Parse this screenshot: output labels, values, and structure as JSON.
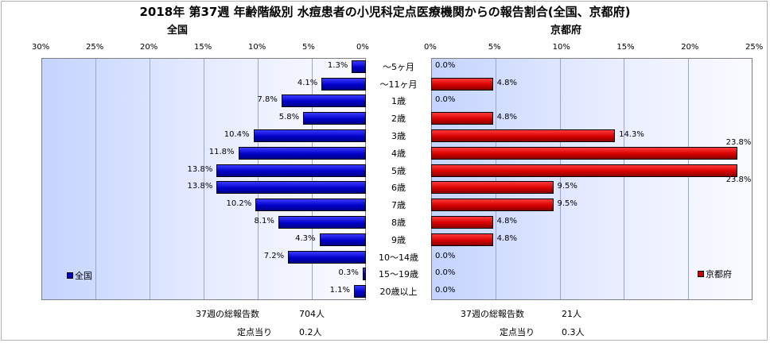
{
  "title": "2018年 第37週 年齢階級別 水痘患者の小児科定点医療機関からの報告割合(全国、京都府)",
  "colors": {
    "nation": "#0000cc",
    "kyoto": "#cc0000",
    "plot_bg_left": "#c4d4ff",
    "plot_bg_right": "#fafbff"
  },
  "chart_data": [
    {
      "type": "bar",
      "orientation": "horizontal",
      "direction": "right-to-left",
      "title": "全国",
      "categories": [
        "～5ヶ月",
        "～11ヶ月",
        "1歳",
        "2歳",
        "3歳",
        "4歳",
        "5歳",
        "6歳",
        "7歳",
        "8歳",
        "9歳",
        "10～14歳",
        "15～19歳",
        "20歳以上"
      ],
      "series": [
        {
          "name": "全国",
          "values": [
            1.3,
            4.1,
            7.8,
            5.8,
            10.4,
            11.8,
            13.8,
            13.8,
            10.2,
            8.1,
            4.3,
            7.2,
            0.3,
            1.1
          ]
        }
      ],
      "value_labels": [
        "1.3%",
        "4.1%",
        "7.8%",
        "5.8%",
        "10.4%",
        "11.8%",
        "13.8%",
        "13.8%",
        "10.2%",
        "8.1%",
        "4.3%",
        "7.2%",
        "0.3%",
        "1.1%"
      ],
      "xlim": [
        0,
        30
      ],
      "ticks": [
        "30%",
        "25%",
        "20%",
        "15%",
        "10%",
        "5%",
        "0%"
      ],
      "legend": "bottom-left",
      "grid": true
    },
    {
      "type": "bar",
      "orientation": "horizontal",
      "direction": "left-to-right",
      "title": "京都府",
      "categories": [
        "～5ヶ月",
        "～11ヶ月",
        "1歳",
        "2歳",
        "3歳",
        "4歳",
        "5歳",
        "6歳",
        "7歳",
        "8歳",
        "9歳",
        "10～14歳",
        "15～19歳",
        "20歳以上"
      ],
      "series": [
        {
          "name": "京都府",
          "values": [
            0.0,
            4.8,
            0.0,
            4.8,
            14.3,
            23.8,
            23.8,
            9.5,
            9.5,
            4.8,
            4.8,
            0.0,
            0.0,
            0.0
          ]
        }
      ],
      "value_labels": [
        "0.0%",
        "4.8%",
        "0.0%",
        "4.8%",
        "14.3%",
        "23.8%",
        "23.8%",
        "9.5%",
        "9.5%",
        "4.8%",
        "4.8%",
        "0.0%",
        "0.0%",
        "0.0%"
      ],
      "xlim": [
        0,
        25
      ],
      "ticks": [
        "0%",
        "5%",
        "10%",
        "15%",
        "20%",
        "25%"
      ],
      "legend": "bottom-right",
      "grid": true
    }
  ],
  "footer": {
    "nation_total_label": "37週の総報告数",
    "nation_total_value": "704人",
    "nation_per_label": "定点当り",
    "nation_per_value": "0.2人",
    "kyoto_total_label": "37週の総報告数",
    "kyoto_total_value": "21人",
    "kyoto_per_label": "定点当り",
    "kyoto_per_value": "0.3人"
  }
}
